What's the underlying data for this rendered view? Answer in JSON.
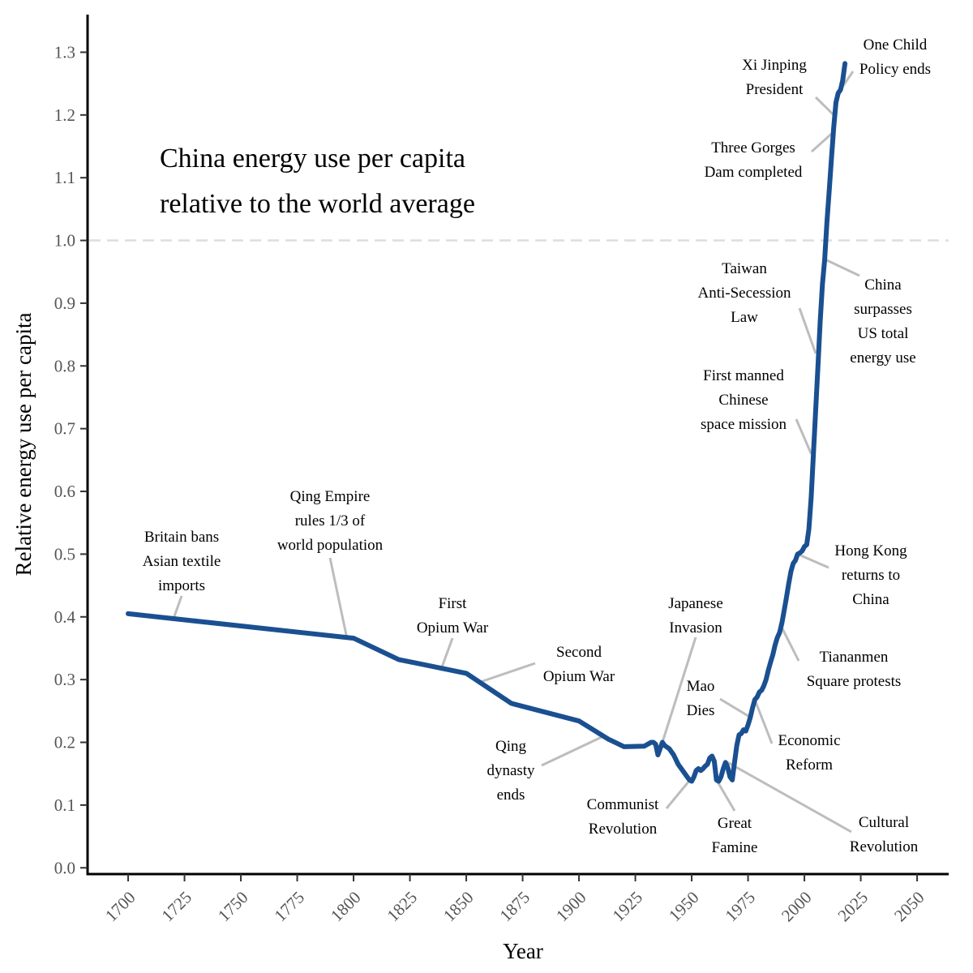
{
  "chart_data": {
    "type": "line",
    "title": [
      "China energy use per capita",
      "relative to the world average"
    ],
    "xlabel": "Year",
    "ylabel": "Relative energy use per capita",
    "xlim": [
      1682,
      2064
    ],
    "ylim": [
      -0.01,
      1.36
    ],
    "x_ticks": [
      1700,
      1725,
      1750,
      1775,
      1800,
      1825,
      1850,
      1875,
      1900,
      1925,
      1950,
      1975,
      2000,
      2025,
      2050
    ],
    "y_ticks": [
      0.0,
      0.1,
      0.2,
      0.3,
      0.4,
      0.5,
      0.6,
      0.7,
      0.8,
      0.9,
      1.0,
      1.1,
      1.2,
      1.3
    ],
    "y_tick_decimals": 1,
    "reference_line": {
      "y": 1.0,
      "style": "dashed",
      "color": "#dddddd"
    },
    "line_color": "#1a5091",
    "grid": false,
    "series": [
      {
        "name": "China",
        "x": [
          1700,
          1800,
          1820,
          1850,
          1870,
          1900,
          1913,
          1920,
          1929,
          1932,
          1933,
          1934,
          1935,
          1936,
          1937,
          1938,
          1940,
          1942,
          1944,
          1946,
          1948,
          1949,
          1950,
          1951,
          1952,
          1953,
          1954,
          1955,
          1956,
          1957,
          1958,
          1959,
          1960,
          1961,
          1962,
          1963,
          1964,
          1965,
          1966,
          1967,
          1968,
          1969,
          1970,
          1971,
          1972,
          1973,
          1974,
          1975,
          1976,
          1977,
          1978,
          1979,
          1980,
          1981,
          1982,
          1983,
          1984,
          1985,
          1986,
          1987,
          1988,
          1989,
          1990,
          1991,
          1992,
          1993,
          1994,
          1995,
          1996,
          1997,
          1998,
          1999,
          2000,
          2001,
          2002,
          2003,
          2004,
          2005,
          2006,
          2007,
          2008,
          2009,
          2010,
          2011,
          2012,
          2013,
          2014,
          2015,
          2016,
          2017,
          2018
        ],
        "y": [
          0.405,
          0.366,
          0.332,
          0.31,
          0.262,
          0.234,
          0.205,
          0.193,
          0.194,
          0.2,
          0.2,
          0.197,
          0.18,
          0.19,
          0.2,
          0.195,
          0.19,
          0.18,
          0.165,
          0.155,
          0.145,
          0.14,
          0.138,
          0.145,
          0.155,
          0.158,
          0.155,
          0.158,
          0.162,
          0.165,
          0.175,
          0.178,
          0.17,
          0.14,
          0.138,
          0.145,
          0.158,
          0.168,
          0.16,
          0.145,
          0.14,
          0.168,
          0.195,
          0.212,
          0.214,
          0.22,
          0.218,
          0.228,
          0.24,
          0.255,
          0.268,
          0.272,
          0.28,
          0.283,
          0.29,
          0.3,
          0.315,
          0.328,
          0.34,
          0.355,
          0.367,
          0.375,
          0.39,
          0.41,
          0.43,
          0.452,
          0.472,
          0.485,
          0.49,
          0.5,
          0.502,
          0.505,
          0.512,
          0.515,
          0.54,
          0.59,
          0.66,
          0.73,
          0.8,
          0.87,
          0.93,
          0.97,
          1.03,
          1.08,
          1.13,
          1.18,
          1.22,
          1.235,
          1.24,
          1.255,
          1.282
        ]
      }
    ],
    "annotations": [
      {
        "lines": [
          "Britain bans",
          "Asian textile",
          "imports"
        ],
        "point": [
          1720,
          0.396
        ]
      },
      {
        "lines": [
          "Qing Empire",
          "rules 1/3 of",
          "world population"
        ],
        "point": [
          1797,
          0.367
        ]
      },
      {
        "lines": [
          "First",
          "Opium War"
        ],
        "point": [
          1839,
          0.318
        ]
      },
      {
        "lines": [
          "Second",
          "Opium War"
        ],
        "point": [
          1856,
          0.296
        ]
      },
      {
        "lines": [
          "Qing",
          "dynasty",
          "ends"
        ],
        "point": [
          1911,
          0.21
        ]
      },
      {
        "lines": [
          "Japanese",
          "Invasion"
        ],
        "point": [
          1937,
          0.2
        ]
      },
      {
        "lines": [
          "Communist",
          "Revolution"
        ],
        "point": [
          1949,
          0.139
        ]
      },
      {
        "lines": [
          "Great",
          "Famine"
        ],
        "point": [
          1961,
          0.14
        ]
      },
      {
        "lines": [
          "Mao",
          "Dies"
        ],
        "point": [
          1976,
          0.24
        ]
      },
      {
        "lines": [
          "Economic",
          "Reform"
        ],
        "point": [
          1978,
          0.268
        ]
      },
      {
        "lines": [
          "Cultural",
          "Revolution"
        ],
        "point": [
          1966,
          0.168
        ]
      },
      {
        "lines": [
          "Tiananmen",
          "Square protests"
        ],
        "point": [
          1989,
          0.39
        ]
      },
      {
        "lines": [
          "Hong Kong",
          "returns to",
          "China"
        ],
        "point": [
          1997,
          0.5
        ]
      },
      {
        "lines": [
          "First manned",
          "Chinese",
          "space mission"
        ],
        "point": [
          2003,
          0.66
        ]
      },
      {
        "lines": [
          "Taiwan",
          "Anti-Secession",
          "Law"
        ],
        "point": [
          2005,
          0.82
        ]
      },
      {
        "lines": [
          "China",
          "surpasses",
          "US total",
          "energy use"
        ],
        "point": [
          2009,
          0.97
        ]
      },
      {
        "lines": [
          "Three Gorges",
          "Dam completed"
        ],
        "point": [
          2012,
          1.17
        ]
      },
      {
        "lines": [
          "Xi Jinping",
          "President"
        ],
        "point": [
          2013,
          1.2
        ]
      },
      {
        "lines": [
          "One Child",
          "Policy ends"
        ],
        "point": [
          2016,
          1.24
        ]
      }
    ]
  }
}
